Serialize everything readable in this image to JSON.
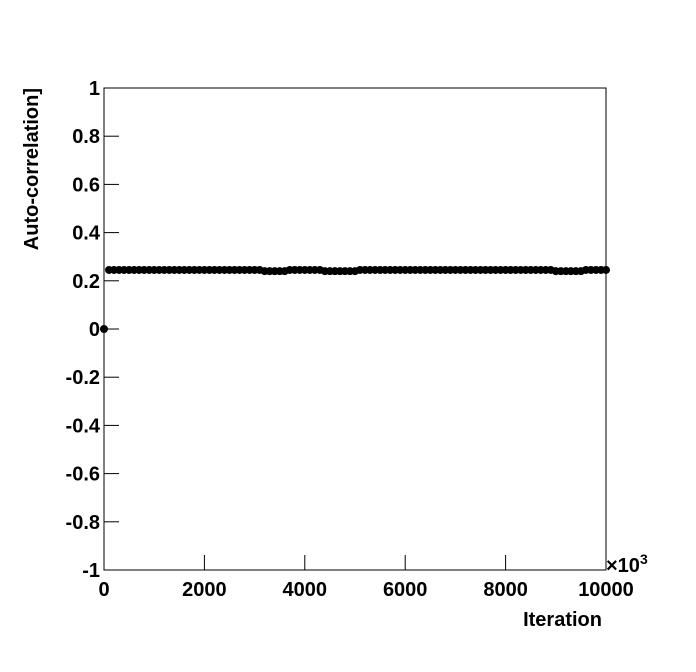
{
  "chart_data": {
    "type": "scatter",
    "x_label": "Iteration",
    "y_label": "Auto-correlation]",
    "x_multiplier": {
      "base": "×10",
      "exponent": "3"
    },
    "x": [
      0,
      100,
      200,
      300,
      400,
      500,
      600,
      700,
      800,
      900,
      1000,
      1100,
      1200,
      1300,
      1400,
      1500,
      1600,
      1700,
      1800,
      1900,
      2000,
      2100,
      2200,
      2300,
      2400,
      2500,
      2600,
      2700,
      2800,
      2900,
      3000,
      3100,
      3200,
      3300,
      3400,
      3500,
      3600,
      3700,
      3800,
      3900,
      4000,
      4100,
      4200,
      4300,
      4400,
      4500,
      4600,
      4700,
      4800,
      4900,
      5000,
      5100,
      5200,
      5300,
      5400,
      5500,
      5600,
      5700,
      5800,
      5900,
      6000,
      6100,
      6200,
      6300,
      6400,
      6500,
      6600,
      6700,
      6800,
      6900,
      7000,
      7100,
      7200,
      7300,
      7400,
      7500,
      7600,
      7700,
      7800,
      7900,
      8000,
      8100,
      8200,
      8300,
      8400,
      8500,
      8600,
      8700,
      8800,
      8900,
      9000,
      9100,
      9200,
      9300,
      9400,
      9500,
      9600,
      9700,
      9800,
      9900,
      10000
    ],
    "values": [
      0,
      0.245,
      0.245,
      0.245,
      0.245,
      0.245,
      0.245,
      0.245,
      0.245,
      0.245,
      0.245,
      0.245,
      0.245,
      0.245,
      0.245,
      0.245,
      0.245,
      0.245,
      0.245,
      0.245,
      0.245,
      0.245,
      0.245,
      0.245,
      0.245,
      0.245,
      0.245,
      0.245,
      0.245,
      0.245,
      0.245,
      0.245,
      0.24,
      0.24,
      0.24,
      0.24,
      0.24,
      0.245,
      0.245,
      0.245,
      0.245,
      0.245,
      0.245,
      0.245,
      0.24,
      0.24,
      0.24,
      0.24,
      0.24,
      0.24,
      0.24,
      0.245,
      0.245,
      0.245,
      0.245,
      0.245,
      0.245,
      0.245,
      0.245,
      0.245,
      0.245,
      0.245,
      0.245,
      0.245,
      0.245,
      0.245,
      0.245,
      0.245,
      0.245,
      0.245,
      0.245,
      0.245,
      0.245,
      0.245,
      0.245,
      0.245,
      0.245,
      0.245,
      0.245,
      0.245,
      0.245,
      0.245,
      0.245,
      0.245,
      0.245,
      0.245,
      0.245,
      0.245,
      0.245,
      0.245,
      0.24,
      0.24,
      0.24,
      0.24,
      0.24,
      0.24,
      0.245,
      0.245,
      0.245,
      0.245,
      0.245
    ],
    "color": "#000000",
    "xlim": [
      0,
      10000
    ],
    "xticks": [
      0,
      2000,
      4000,
      6000,
      8000,
      10000
    ],
    "ylim": [
      -1,
      1
    ],
    "yticks": [
      -1,
      -0.8,
      -0.6,
      -0.4,
      -0.2,
      0,
      0.2,
      0.4,
      0.6,
      0.8,
      1
    ],
    "grid": false
  }
}
